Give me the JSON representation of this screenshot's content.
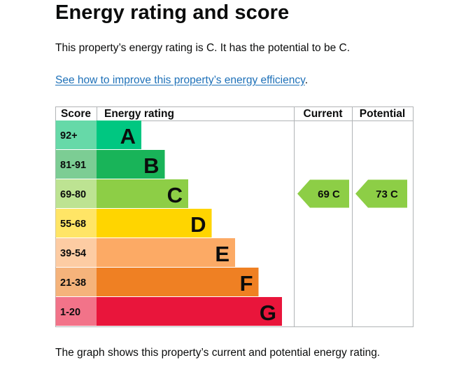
{
  "page": {
    "title": "Energy rating and score",
    "summary": "This property’s energy rating is C. It has the potential to be C.",
    "improve_link": "See how to improve this property’s energy efficiency",
    "improve_link_suffix": ".",
    "graph_caption": "The graph shows this property’s current and potential energy rating."
  },
  "chart_data": {
    "type": "table",
    "headers": {
      "score": "Score",
      "rating": "Energy rating",
      "current": "Current",
      "potential": "Potential"
    },
    "bands": [
      {
        "range": "92+",
        "letter": "A",
        "color": "#00c781",
        "light": "#66d9a8"
      },
      {
        "range": "81-91",
        "letter": "B",
        "color": "#19b459",
        "light": "#7ccd94"
      },
      {
        "range": "69-80",
        "letter": "C",
        "color": "#8dce46",
        "light": "#bde392"
      },
      {
        "range": "55-68",
        "letter": "D",
        "color": "#ffd500",
        "light": "#ffe566"
      },
      {
        "range": "39-54",
        "letter": "E",
        "color": "#fcaa65",
        "light": "#fdcca3"
      },
      {
        "range": "21-38",
        "letter": "F",
        "color": "#ef8023",
        "light": "#f5b37b"
      },
      {
        "range": "1-20",
        "letter": "G",
        "color": "#e9153b",
        "light": "#f27389"
      }
    ],
    "current": {
      "score": 69,
      "letter": "C",
      "label": "69  C"
    },
    "potential": {
      "score": 73,
      "letter": "C",
      "label": "73  C"
    }
  }
}
